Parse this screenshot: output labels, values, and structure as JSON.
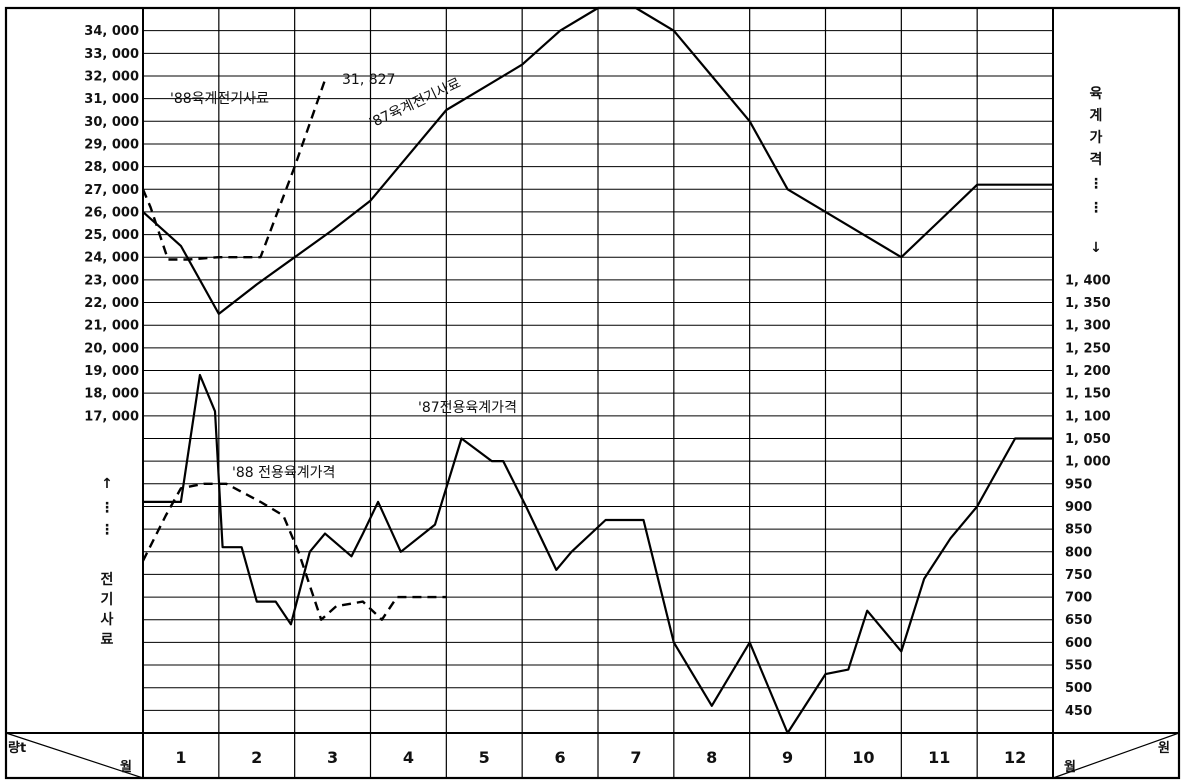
{
  "chart_data": {
    "type": "line",
    "x_unit": "월",
    "categories": [
      "1",
      "2",
      "3",
      "4",
      "5",
      "6",
      "7",
      "8",
      "9",
      "10",
      "11",
      "12"
    ],
    "left_axis": {
      "ticks": [
        "34, 000",
        "33, 000",
        "32, 000",
        "31, 000",
        "30, 000",
        "29, 000",
        "28, 000",
        "27, 000",
        "26, 000",
        "25, 000",
        "24, 000",
        "23, 000",
        "22, 000",
        "21, 000",
        "20, 000",
        "19, 000",
        "18, 000",
        "17, 000"
      ],
      "label": [
        "전",
        "기",
        "사",
        "료"
      ],
      "arrow": "↑",
      "dots": "⋮",
      "corner_top": "량t",
      "corner_bottom": "월",
      "range": [
        17000,
        35000
      ]
    },
    "right_axis": {
      "ticks": [
        "1, 400",
        "1, 350",
        "1, 300",
        "1, 250",
        "1, 200",
        "1, 150",
        "1, 100",
        "1, 050",
        "1, 000",
        "950",
        "900",
        "850",
        "800",
        "750",
        "700",
        "650",
        "600",
        "550",
        "500",
        "450"
      ],
      "label": [
        "육",
        "계",
        "가",
        "격"
      ],
      "arrow": "↓",
      "dots": "⋮",
      "corner_top": "원",
      "corner_bottom": "월",
      "range": [
        450,
        1400
      ]
    },
    "series": [
      {
        "name": "'87육계전기사료",
        "axis": "left",
        "style": "solid",
        "x": [
          0,
          0.5,
          1.0,
          1.5,
          2.0,
          2.5,
          3.0,
          3.5,
          4.0,
          4.5,
          5.0,
          5.5,
          6.0,
          6.5,
          7.0,
          7.5,
          8.0,
          8.5,
          9.0,
          9.5,
          10.0,
          10.5,
          11.0,
          11.5,
          12.0
        ],
        "values": [
          26000,
          24500,
          21500,
          22800,
          24000,
          25200,
          26500,
          28500,
          30500,
          31500,
          32500,
          34000,
          35200,
          35500,
          34000,
          32000,
          30000,
          27000,
          26000,
          25000,
          24000,
          25600,
          27200,
          27200,
          27200
        ]
      },
      {
        "name": "'88육계전기사료",
        "axis": "left",
        "style": "dashed",
        "x": [
          0,
          0.1,
          0.33,
          0.6,
          1.0,
          1.55,
          2.0,
          2.4
        ],
        "values": [
          27000,
          26200,
          23900,
          23900,
          24000,
          24000,
          28000,
          31827
        ],
        "annotation": "31, 827"
      },
      {
        "name": "'87전용육계가격",
        "axis": "right",
        "style": "solid",
        "x": [
          0,
          0.5,
          0.75,
          0.95,
          1.05,
          1.3,
          1.5,
          1.75,
          1.95,
          2.2,
          2.4,
          2.75,
          2.9,
          3.1,
          3.4,
          3.85,
          4.2,
          4.6,
          4.75,
          5.05,
          5.45,
          5.65,
          6.1,
          6.6,
          7.0,
          7.5,
          8.0,
          8.5,
          9.0,
          9.3,
          9.55,
          10.0,
          10.3,
          10.65,
          11.0,
          11.5,
          12.0
        ],
        "values": [
          910,
          910,
          1190,
          1110,
          810,
          810,
          690,
          690,
          640,
          800,
          840,
          790,
          840,
          910,
          800,
          860,
          1050,
          1000,
          1000,
          900,
          760,
          800,
          870,
          870,
          600,
          460,
          600,
          400,
          530,
          540,
          670,
          580,
          740,
          830,
          900,
          1050,
          1050
        ]
      },
      {
        "name": "'88 전용육계가격",
        "axis": "right",
        "style": "dashed",
        "x": [
          0,
          0.3,
          0.5,
          0.8,
          1.1,
          1.55,
          1.85,
          2.05,
          2.35,
          2.55,
          2.9,
          3.15,
          3.35,
          3.55,
          4.0
        ],
        "values": [
          780,
          880,
          940,
          950,
          950,
          910,
          880,
          800,
          650,
          680,
          690,
          650,
          700,
          700,
          700
        ]
      }
    ]
  },
  "annotations": {
    "s87_feed": "'87육계전기사료",
    "s88_feed": "'88육계전기사료",
    "s88_feed_end": "31, 827",
    "s87_price": "'87전용육계가격",
    "s88_price": "'88 전용육계가격"
  }
}
